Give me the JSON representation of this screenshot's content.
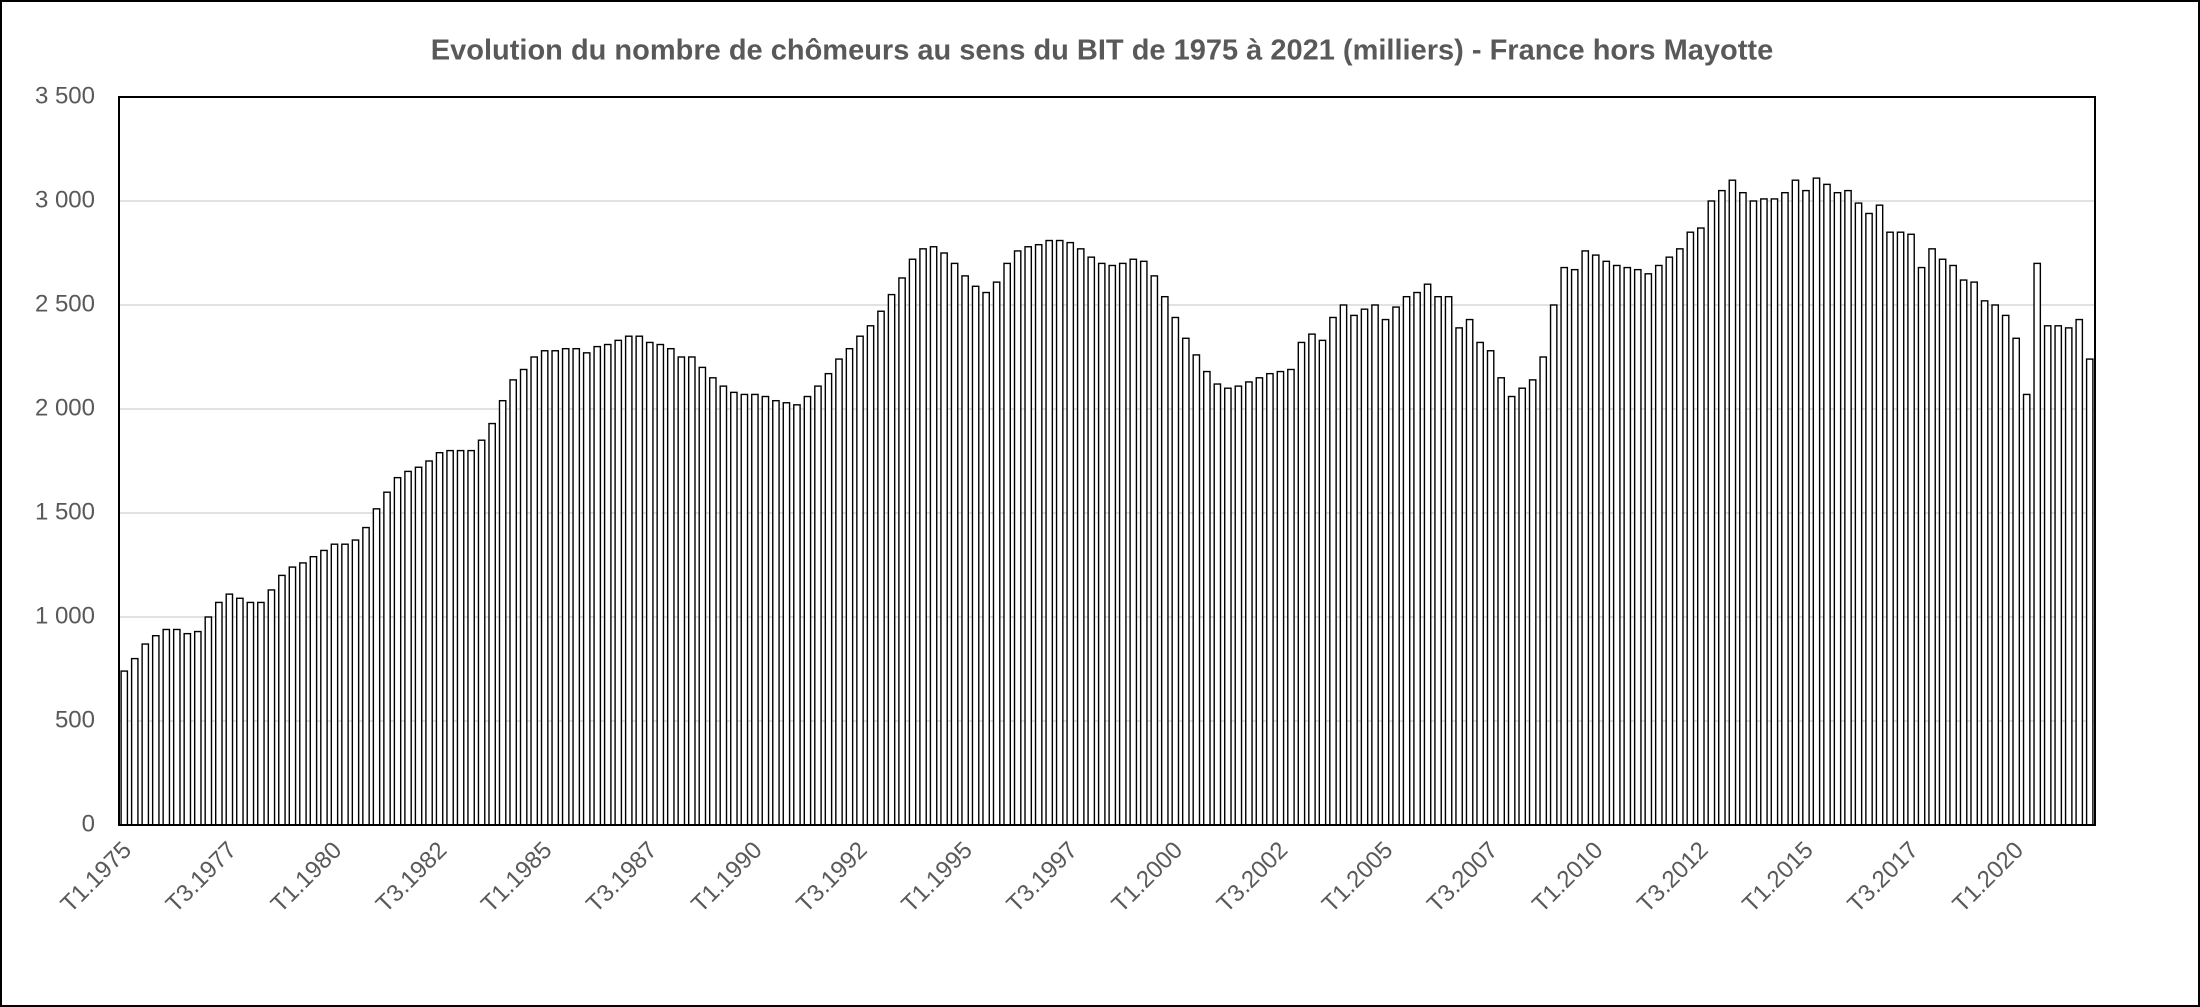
{
  "chart_data": {
    "type": "bar",
    "title": "Evolution du nombre de chômeurs au sens du BIT de 1975 à 2021 (milliers) - France hors Mayotte",
    "categories": [
      "T1.1975",
      null,
      null,
      null,
      null,
      null,
      null,
      null,
      null,
      null,
      "T3.1977",
      null,
      null,
      null,
      null,
      null,
      null,
      null,
      null,
      null,
      "T1.1980",
      null,
      null,
      null,
      null,
      null,
      null,
      null,
      null,
      null,
      "T3.1982",
      null,
      null,
      null,
      null,
      null,
      null,
      null,
      null,
      null,
      "T1.1985",
      null,
      null,
      null,
      null,
      null,
      null,
      null,
      null,
      null,
      "T3.1987",
      null,
      null,
      null,
      null,
      null,
      null,
      null,
      null,
      null,
      "T1.1990",
      null,
      null,
      null,
      null,
      null,
      null,
      null,
      null,
      null,
      "T3.1992",
      null,
      null,
      null,
      null,
      null,
      null,
      null,
      null,
      null,
      "T1.1995",
      null,
      null,
      null,
      null,
      null,
      null,
      null,
      null,
      null,
      "T3.1997",
      null,
      null,
      null,
      null,
      null,
      null,
      null,
      null,
      null,
      "T1.2000",
      null,
      null,
      null,
      null,
      null,
      null,
      null,
      null,
      null,
      "T3.2002",
      null,
      null,
      null,
      null,
      null,
      null,
      null,
      null,
      null,
      "T1.2005",
      null,
      null,
      null,
      null,
      null,
      null,
      null,
      null,
      null,
      "T3.2007",
      null,
      null,
      null,
      null,
      null,
      null,
      null,
      null,
      null,
      "T1.2010",
      null,
      null,
      null,
      null,
      null,
      null,
      null,
      null,
      null,
      "T3.2012",
      null,
      null,
      null,
      null,
      null,
      null,
      null,
      null,
      null,
      "T1.2015",
      null,
      null,
      null,
      null,
      null,
      null,
      null,
      null,
      null,
      "T3.2017",
      null,
      null,
      null,
      null,
      null,
      null,
      null,
      null,
      null,
      "T1.2020",
      null,
      null,
      null,
      null,
      null,
      null,
      null
    ],
    "values": [
      740,
      800,
      870,
      910,
      940,
      940,
      920,
      930,
      1000,
      1070,
      1110,
      1090,
      1070,
      1070,
      1130,
      1200,
      1240,
      1260,
      1290,
      1320,
      1350,
      1350,
      1370,
      1430,
      1520,
      1600,
      1670,
      1700,
      1720,
      1750,
      1790,
      1800,
      1800,
      1800,
      1850,
      1930,
      2040,
      2140,
      2190,
      2250,
      2280,
      2280,
      2290,
      2290,
      2270,
      2300,
      2310,
      2330,
      2350,
      2350,
      2320,
      2310,
      2290,
      2250,
      2250,
      2200,
      2150,
      2110,
      2080,
      2070,
      2070,
      2060,
      2040,
      2030,
      2020,
      2060,
      2110,
      2170,
      2240,
      2290,
      2350,
      2400,
      2470,
      2550,
      2630,
      2720,
      2770,
      2780,
      2750,
      2700,
      2640,
      2590,
      2560,
      2610,
      2700,
      2760,
      2780,
      2790,
      2810,
      2810,
      2800,
      2770,
      2730,
      2700,
      2690,
      2700,
      2720,
      2710,
      2640,
      2540,
      2440,
      2340,
      2260,
      2180,
      2120,
      2100,
      2110,
      2130,
      2150,
      2170,
      2180,
      2190,
      2320,
      2360,
      2330,
      2440,
      2500,
      2450,
      2480,
      2500,
      2430,
      2490,
      2540,
      2560,
      2600,
      2540,
      2540,
      2390,
      2430,
      2320,
      2280,
      2150,
      2060,
      2100,
      2140,
      2250,
      2500,
      2680,
      2670,
      2760,
      2740,
      2710,
      2690,
      2680,
      2670,
      2650,
      2690,
      2730,
      2770,
      2850,
      2870,
      3000,
      3050,
      3100,
      3040,
      3000,
      3010,
      3010,
      3040,
      3100,
      3050,
      3110,
      3080,
      3040,
      3050,
      2990,
      2940,
      2980,
      2850,
      2850,
      2840,
      2680,
      2770,
      2720,
      2690,
      2620,
      2610,
      2520,
      2500,
      2450,
      2340,
      2070,
      2700,
      2400,
      2400,
      2390,
      2430,
      2240
    ],
    "color": "#ffffff",
    "ylim": [
      0,
      3500
    ],
    "yticks": [
      0,
      500,
      {
        "value": 1000,
        "label": "1 000"
      },
      {
        "value": 1500,
        "label": "1 500"
      },
      {
        "value": 2000,
        "label": "2 000"
      },
      {
        "value": 2500,
        "label": "2 500"
      },
      {
        "value": 3000,
        "label": "3 000"
      },
      {
        "value": 3500,
        "label": "3 500"
      }
    ],
    "grid": true
  }
}
